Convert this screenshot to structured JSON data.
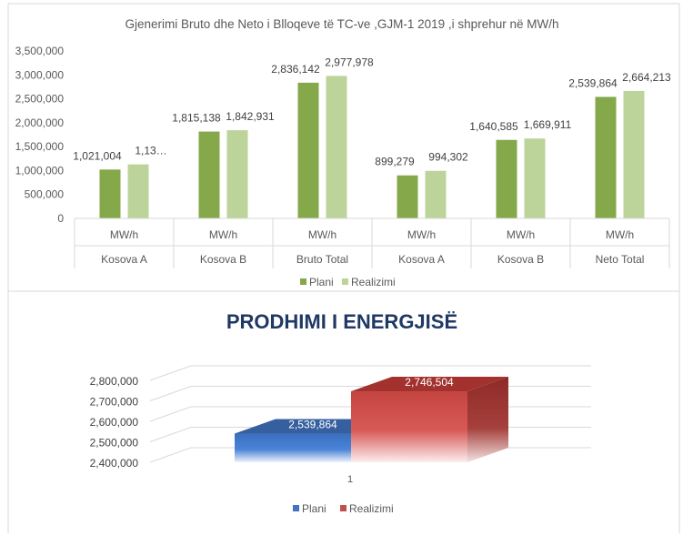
{
  "chart_data": [
    {
      "type": "bar",
      "title": "Gjenerimi Bruto dhe Neto i Blloqeve të TC-ve ,GJM-1 2019 ,i shprehur në MW/h",
      "categories": [
        {
          "unit": "MW/h",
          "group": "Kosova A"
        },
        {
          "unit": "MW/h",
          "group": "Kosova B"
        },
        {
          "unit": "MW/h",
          "group": "Bruto Total"
        },
        {
          "unit": "MW/h",
          "group": "Kosova A"
        },
        {
          "unit": "MW/h",
          "group": "Kosova B"
        },
        {
          "unit": "MW/h",
          "group": "Neto Total"
        }
      ],
      "series": [
        {
          "name": "Plani",
          "values": [
            1021004,
            1815138,
            2836142,
            899279,
            1640585,
            2539864
          ],
          "labels": [
            "1,021,004",
            "1,815,138",
            "2,836,142",
            "899,279",
            "1,640,585",
            "2,539,864"
          ],
          "color": "#84a84a"
        },
        {
          "name": "Realizimi",
          "values": [
            1130000,
            1842931,
            2977978,
            994302,
            1669911,
            2664213
          ],
          "labels": [
            "1,13…",
            "1,842,931",
            "2,977,978",
            "994,302",
            "1,669,911",
            "2,664,213"
          ],
          "color": "#bcd49a"
        }
      ],
      "yticks": [
        "3,500,000",
        "3,000,000",
        "2,500,000",
        "2,000,000",
        "1,500,000",
        "1,000,000",
        "500,000",
        "0"
      ],
      "ylim": [
        0,
        3500000
      ],
      "legend_position": "bottom",
      "grid": false
    },
    {
      "type": "bar",
      "title": "PRODHIMI I ENERGJISË",
      "categories": [
        "1"
      ],
      "series": [
        {
          "name": "Plani",
          "values": [
            2539864
          ],
          "labels": [
            "2,539,864"
          ],
          "color": "#4472c4"
        },
        {
          "name": "Realizimi",
          "values": [
            2746504
          ],
          "labels": [
            "2,746,504"
          ],
          "color": "#c0504d"
        }
      ],
      "yticks": [
        "2,800,000",
        "2,700,000",
        "2,600,000",
        "2,500,000",
        "2,400,000"
      ],
      "ylim": [
        2400000,
        2800000
      ],
      "legend_position": "bottom",
      "grid": true,
      "style": "3d"
    }
  ]
}
